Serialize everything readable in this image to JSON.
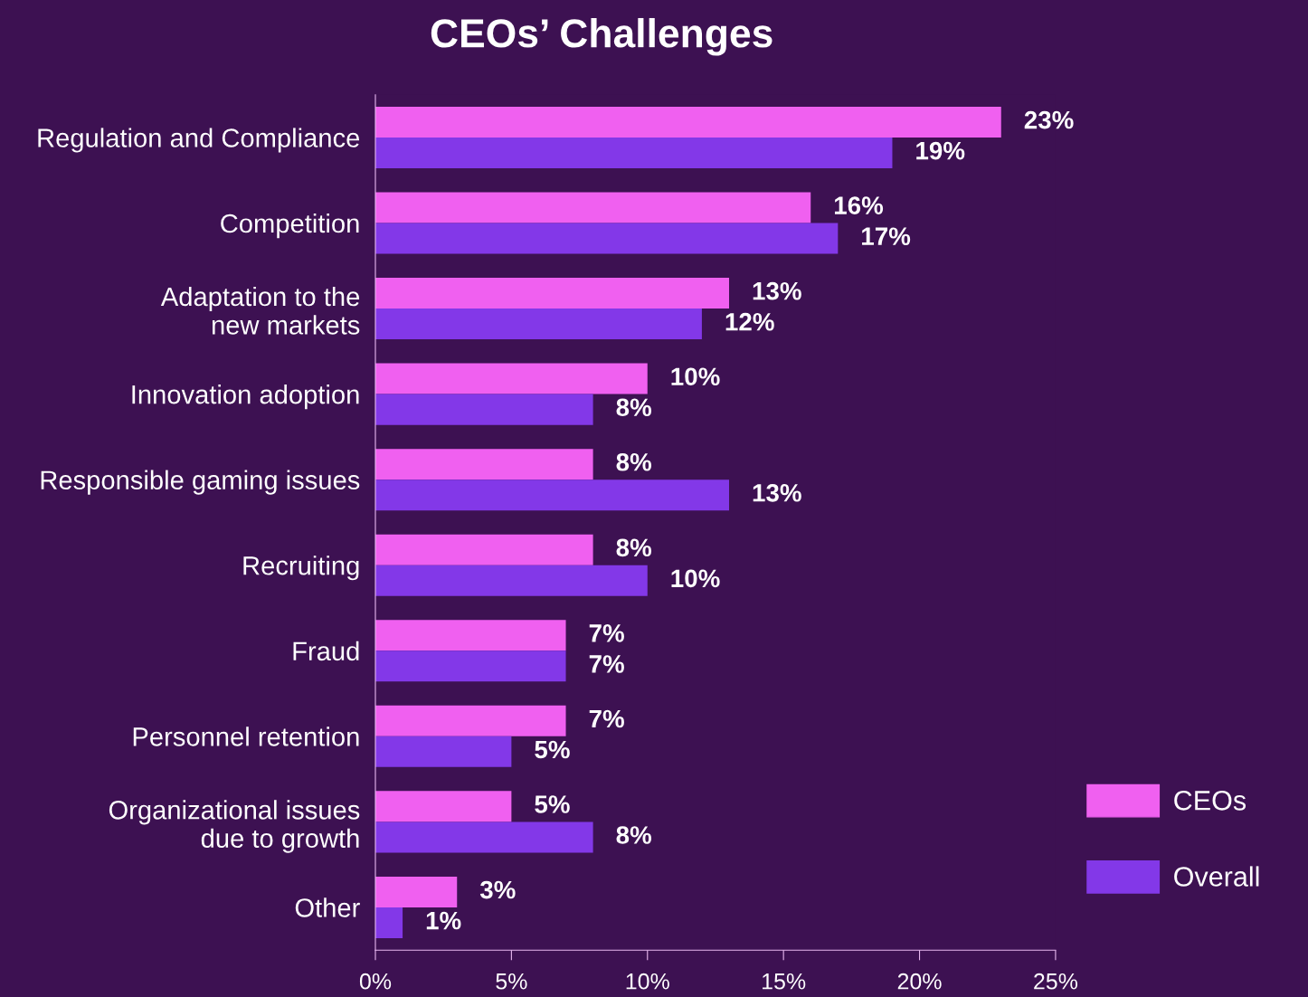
{
  "chart_data": {
    "type": "bar",
    "orientation": "horizontal",
    "title": "CEOs’ Challenges",
    "categories": [
      "Regulation and Compliance",
      "Competition",
      "Adaptation to the\nnew markets",
      "Innovation adoption",
      "Responsible gaming issues",
      "Recruiting",
      "Fraud",
      "Personnel retention",
      "Organizational issues\ndue to growth",
      "Other"
    ],
    "series": [
      {
        "name": "CEOs",
        "color": "#f060f0",
        "values": [
          23,
          16,
          13,
          10,
          8,
          8,
          7,
          7,
          5,
          3
        ],
        "value_labels": [
          "23%",
          "16%",
          "13%",
          "10%",
          "8%",
          "8%",
          "7%",
          "7%",
          "5%",
          "3%"
        ]
      },
      {
        "name": "Overall",
        "color": "#8338e8",
        "values": [
          19,
          17,
          12,
          8,
          13,
          10,
          7,
          5,
          8,
          1
        ],
        "value_labels": [
          "19%",
          "17%",
          "12%",
          "8%",
          "13%",
          "10%",
          "7%",
          "5%",
          "8%",
          "1%"
        ]
      }
    ],
    "xlim": [
      0,
      25
    ],
    "xticks": [
      {
        "value": 0,
        "label": "0%"
      },
      {
        "value": 5,
        "label": "5%"
      },
      {
        "value": 10,
        "label": "10%"
      },
      {
        "value": 15,
        "label": "15%"
      },
      {
        "value": 20,
        "label": "20%"
      },
      {
        "value": 25,
        "label": "25%"
      }
    ],
    "grid": false,
    "legend": "right"
  }
}
